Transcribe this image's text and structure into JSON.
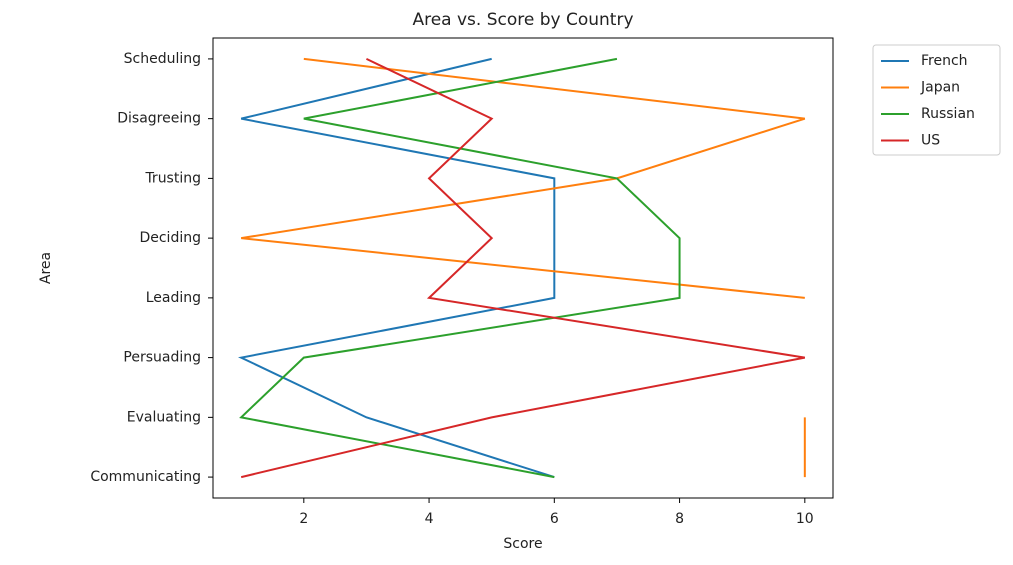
{
  "chart_data": {
    "type": "line",
    "orientation": "horizontal",
    "title": "Area vs. Score by Country",
    "x_label": "Score",
    "y_label": "Area",
    "categories": [
      "Communicating",
      "Evaluating",
      "Persuading",
      "Leading",
      "Deciding",
      "Trusting",
      "Disagreeing",
      "Scheduling"
    ],
    "series": [
      {
        "name": "French",
        "color": "#1f77b4",
        "values": [
          6,
          3,
          1,
          6,
          6,
          6,
          1,
          5
        ]
      },
      {
        "name": "Japan",
        "color": "#ff7f0e",
        "values": [
          10,
          10,
          null,
          10,
          1,
          7,
          10,
          2
        ]
      },
      {
        "name": "Russian",
        "color": "#2ca02c",
        "values": [
          6,
          1,
          2,
          8,
          8,
          7,
          2,
          7
        ]
      },
      {
        "name": "US",
        "color": "#d62728",
        "values": [
          1,
          5,
          10,
          4,
          5,
          4,
          5,
          3
        ]
      }
    ],
    "xlim": [
      0.55,
      10.45
    ],
    "xticks": [
      2,
      4,
      6,
      8,
      10
    ],
    "grid": false,
    "legend_position": "outside-right"
  }
}
